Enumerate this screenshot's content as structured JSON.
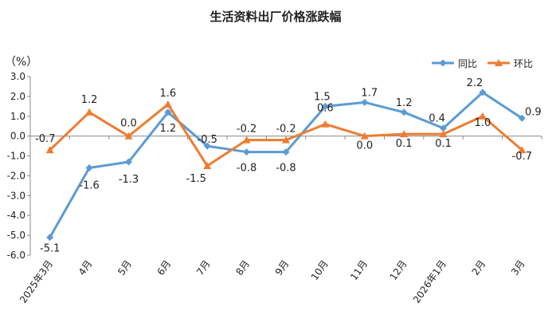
{
  "chart_data": {
    "type": "line",
    "title": "生活资料出厂价格涨跌幅",
    "ylabel": "（%）",
    "xlabel": "",
    "categories": [
      "2025年3月",
      "4月",
      "5月",
      "6月",
      "7月",
      "8月",
      "9月",
      "10月",
      "11月",
      "12月",
      "2026年1月",
      "2月",
      "3月"
    ],
    "ylim": [
      -6.0,
      3.0
    ],
    "yticks": [
      -6.0,
      -5.0,
      -4.0,
      -3.0,
      -2.0,
      -1.0,
      0.0,
      1.0,
      2.0,
      3.0
    ],
    "ytick_labels": [
      "-6.0",
      "-5.0",
      "-4.0",
      "-3.0",
      "-2.0",
      "-1.0",
      "0.0",
      "1.0",
      "2.0",
      "3.0"
    ],
    "grid": false,
    "legend_position": "top-right",
    "series": [
      {
        "name": "同比",
        "color": "#5B9BD5",
        "marker": "diamond",
        "values": [
          -5.1,
          -1.6,
          -1.3,
          1.2,
          -0.5,
          -0.8,
          -0.8,
          1.5,
          1.7,
          1.2,
          0.4,
          2.2,
          0.9
        ],
        "labels": [
          "-5.1",
          "-1.6",
          "-1.3",
          "1.2",
          "-0.5",
          "-0.8",
          "-0.8",
          "1.5",
          "1.7",
          "1.2",
          "0.4",
          "2.2",
          "0.9"
        ]
      },
      {
        "name": "环比",
        "color": "#ED7D31",
        "marker": "triangle",
        "values": [
          -0.7,
          1.2,
          0.0,
          1.6,
          -1.5,
          -0.2,
          -0.2,
          0.6,
          0.0,
          0.1,
          0.1,
          1.0,
          -0.7
        ],
        "labels": [
          "-0.7",
          "1.2",
          "0.0",
          "1.6",
          "-1.5",
          "-0.2",
          "-0.2",
          "0.6",
          "0.0",
          "0.1",
          "0.1",
          "1.0",
          "-0.7"
        ]
      }
    ]
  }
}
